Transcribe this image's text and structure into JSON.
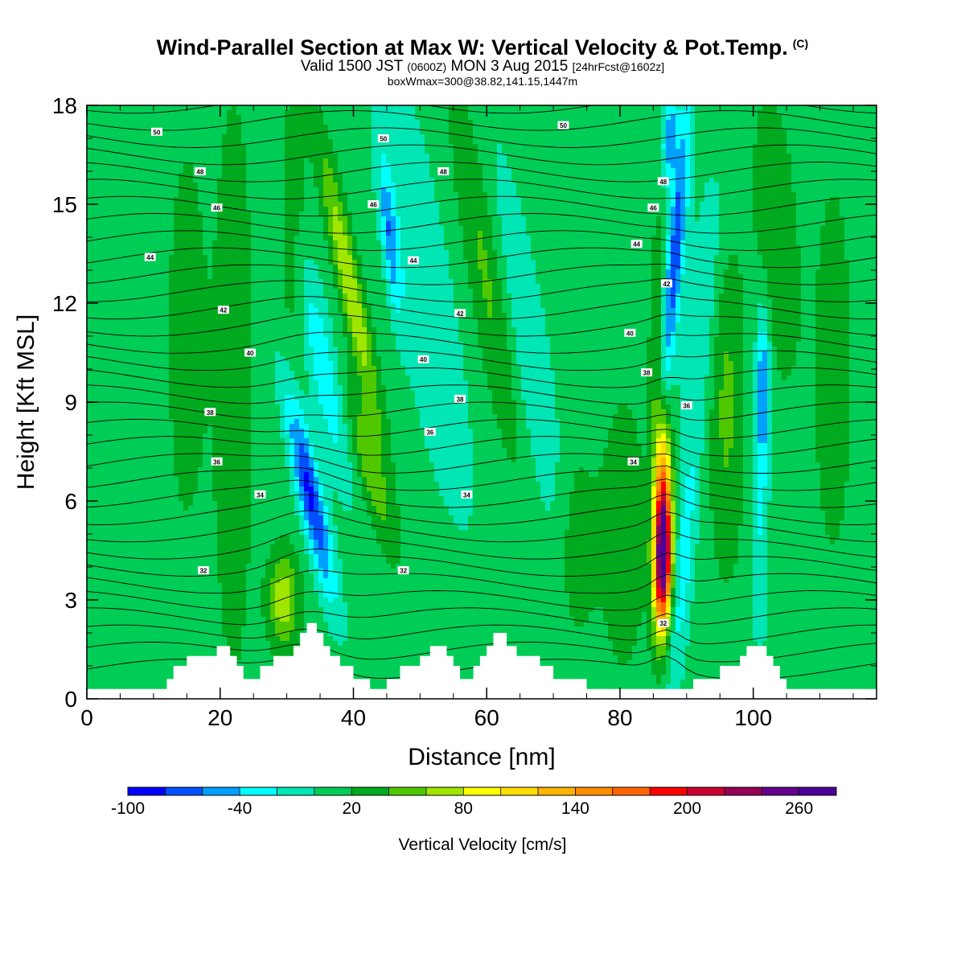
{
  "title": {
    "main": "Wind-Parallel Section at Max W: Vertical Velocity & Pot.Temp.",
    "mark": "(C)",
    "line2_a": "Valid 1500 JST",
    "line2_b": "(0600Z)",
    "line2_c": "MON 3 Aug 2015",
    "line2_d": "[24hrFcst@1602z]",
    "line3": "boxWmax=300@38.82,141.15,1447m"
  },
  "chart_data": {
    "type": "heatmap",
    "xlabel": "Distance [nm]",
    "ylabel": "Height [Kft MSL]",
    "xlim": [
      0,
      118.5
    ],
    "ylim": [
      0,
      18
    ],
    "xticks": [
      0,
      20,
      40,
      60,
      80,
      100
    ],
    "yticks": [
      0,
      3,
      6,
      9,
      12,
      15,
      18
    ],
    "background_value": 10,
    "colorbar": {
      "label": "Vertical Velocity [cm/s]",
      "levels": [
        -100,
        -80,
        -60,
        -40,
        -20,
        0,
        20,
        40,
        60,
        80,
        100,
        120,
        140,
        160,
        180,
        200,
        220,
        240,
        260,
        280
      ],
      "tick_labels": [
        -100,
        -40,
        20,
        80,
        140,
        200,
        260
      ],
      "colors": [
        "#0000ff",
        "#0050ff",
        "#00a0ff",
        "#00ffff",
        "#00e6b4",
        "#00cd55",
        "#00aa1e",
        "#50c800",
        "#a0e600",
        "#ffff00",
        "#ffdc00",
        "#ffb400",
        "#ff8c00",
        "#ff6400",
        "#ff0000",
        "#cd0032",
        "#960055",
        "#64008c",
        "#4b0096"
      ]
    },
    "features": [
      {
        "x": 33.5,
        "y": 6.2,
        "sx": 1.3,
        "sy": 2.2,
        "w": -95,
        "tilt": -1.0
      },
      {
        "x": 35.5,
        "y": 10.0,
        "sx": 1.6,
        "sy": 2.5,
        "w": -45,
        "tilt": -0.9
      },
      {
        "x": 39.5,
        "y": 12.5,
        "sx": 1.2,
        "sy": 3.0,
        "w": 70,
        "tilt": -1.0
      },
      {
        "x": 42.5,
        "y": 7.0,
        "sx": 1.4,
        "sy": 1.7,
        "w": 45,
        "tilt": -1.2
      },
      {
        "x": 45.5,
        "y": 14.0,
        "sx": 0.8,
        "sy": 1.6,
        "w": -60,
        "tilt": -0.5
      },
      {
        "x": 29.5,
        "y": 3.0,
        "sx": 1.6,
        "sy": 1.0,
        "w": 65,
        "tilt": 0
      },
      {
        "x": 50.5,
        "y": 12.5,
        "sx": 3.0,
        "sy": 5.0,
        "w": -30,
        "tilt": -0.8
      },
      {
        "x": 60.5,
        "y": 12.5,
        "sx": 2.0,
        "sy": 4.0,
        "w": 45,
        "tilt": -0.8
      },
      {
        "x": 65.0,
        "y": 11.0,
        "sx": 2.8,
        "sy": 4.5,
        "w": -30,
        "tilt": -0.8
      },
      {
        "x": 86.5,
        "y": 4.2,
        "sx": 0.9,
        "sy": 1.5,
        "w": 245,
        "tilt": 0.1
      },
      {
        "x": 86.2,
        "y": 6.5,
        "sx": 0.9,
        "sy": 1.8,
        "w": 110,
        "tilt": 0.1
      },
      {
        "x": 85.5,
        "y": 11.0,
        "sx": 0.7,
        "sy": 2.5,
        "w": 35,
        "tilt": 0.1
      },
      {
        "x": 88.3,
        "y": 13.5,
        "sx": 0.9,
        "sy": 3.2,
        "w": -85,
        "tilt": 0.4
      },
      {
        "x": 87.5,
        "y": 17.0,
        "sx": 0.8,
        "sy": 1.0,
        "w": -65,
        "tilt": 0.2
      },
      {
        "x": 89.5,
        "y": 4.0,
        "sx": 1.1,
        "sy": 3.0,
        "w": -40,
        "tilt": 0.4
      },
      {
        "x": 92.5,
        "y": 12.0,
        "sx": 1.8,
        "sy": 3.0,
        "w": -30,
        "tilt": 0.5
      },
      {
        "x": 101.5,
        "y": 9.5,
        "sx": 0.7,
        "sy": 1.6,
        "w": -65,
        "tilt": 0
      },
      {
        "x": 101.0,
        "y": 5.5,
        "sx": 0.9,
        "sy": 3.0,
        "w": -30,
        "tilt": 0
      },
      {
        "x": 96.0,
        "y": 9.0,
        "sx": 1.8,
        "sy": 3.5,
        "w": 35,
        "tilt": 0
      },
      {
        "x": 103.5,
        "y": 14.0,
        "sx": 2.2,
        "sy": 3.0,
        "w": 28,
        "tilt": -0.3
      },
      {
        "x": 22.0,
        "y": 9.5,
        "sx": 2.0,
        "sy": 6.0,
        "w": 28,
        "tilt": 0
      },
      {
        "x": 15.0,
        "y": 11.0,
        "sx": 2.0,
        "sy": 4.0,
        "w": 24,
        "tilt": 0
      },
      {
        "x": 31.0,
        "y": 14.5,
        "sx": 1.4,
        "sy": 3.0,
        "w": 24,
        "tilt": 0
      },
      {
        "x": 73.5,
        "y": 4.5,
        "sx": 2.0,
        "sy": 2.0,
        "w": 26,
        "tilt": 0
      },
      {
        "x": 80.5,
        "y": 5.0,
        "sx": 2.5,
        "sy": 3.0,
        "w": 24,
        "tilt": 0
      },
      {
        "x": 112.0,
        "y": 10.0,
        "sx": 2.0,
        "sy": 4.0,
        "w": 24,
        "tilt": 0
      }
    ],
    "terrain": [
      [
        0,
        0.3
      ],
      [
        12,
        0.3
      ],
      [
        12,
        0.6
      ],
      [
        13,
        0.6
      ],
      [
        13,
        1.0
      ],
      [
        15,
        1.0
      ],
      [
        15,
        1.3
      ],
      [
        19.5,
        1.3
      ],
      [
        19.5,
        1.6
      ],
      [
        21.5,
        1.6
      ],
      [
        21.5,
        1.3
      ],
      [
        22.5,
        1.3
      ],
      [
        22.5,
        1.0
      ],
      [
        23.5,
        1.0
      ],
      [
        23.5,
        0.6
      ],
      [
        26,
        0.6
      ],
      [
        26,
        1.0
      ],
      [
        28,
        1.0
      ],
      [
        28,
        1.3
      ],
      [
        31,
        1.3
      ],
      [
        31,
        1.6
      ],
      [
        32,
        1.6
      ],
      [
        32,
        2.0
      ],
      [
        33,
        2.0
      ],
      [
        33,
        2.3
      ],
      [
        34.5,
        2.3
      ],
      [
        34.5,
        2.0
      ],
      [
        35.5,
        2.0
      ],
      [
        35.5,
        1.6
      ],
      [
        36.5,
        1.6
      ],
      [
        36.5,
        1.3
      ],
      [
        38,
        1.3
      ],
      [
        38,
        1.0
      ],
      [
        40,
        1.0
      ],
      [
        40,
        0.6
      ],
      [
        42.5,
        0.6
      ],
      [
        42.5,
        0.3
      ],
      [
        45,
        0.3
      ],
      [
        45,
        0.6
      ],
      [
        47,
        0.6
      ],
      [
        47,
        1.0
      ],
      [
        50,
        1.0
      ],
      [
        50,
        1.3
      ],
      [
        51.5,
        1.3
      ],
      [
        51.5,
        1.6
      ],
      [
        54,
        1.6
      ],
      [
        54,
        1.3
      ],
      [
        55,
        1.3
      ],
      [
        55,
        1.0
      ],
      [
        56,
        1.0
      ],
      [
        56,
        0.6
      ],
      [
        58,
        0.6
      ],
      [
        58,
        1.0
      ],
      [
        59,
        1.0
      ],
      [
        59,
        1.3
      ],
      [
        60,
        1.3
      ],
      [
        60,
        1.6
      ],
      [
        61,
        1.6
      ],
      [
        61,
        2.0
      ],
      [
        63,
        2.0
      ],
      [
        63,
        1.6
      ],
      [
        64.5,
        1.6
      ],
      [
        64.5,
        1.3
      ],
      [
        68,
        1.3
      ],
      [
        68,
        1.0
      ],
      [
        70,
        1.0
      ],
      [
        70,
        0.6
      ],
      [
        75,
        0.6
      ],
      [
        75,
        0.3
      ],
      [
        91,
        0.3
      ],
      [
        91,
        0.6
      ],
      [
        95,
        0.6
      ],
      [
        95,
        1.0
      ],
      [
        98,
        1.0
      ],
      [
        98,
        1.3
      ],
      [
        99,
        1.3
      ],
      [
        99,
        1.6
      ],
      [
        102,
        1.6
      ],
      [
        102,
        1.3
      ],
      [
        103,
        1.3
      ],
      [
        103,
        1.0
      ],
      [
        104,
        1.0
      ],
      [
        104,
        0.6
      ],
      [
        105,
        0.6
      ],
      [
        105,
        0.3
      ],
      [
        118.5,
        0.3
      ]
    ],
    "contour_labels": [
      {
        "text": "50",
        "x": 10.5,
        "y": 17.2
      },
      {
        "text": "50",
        "x": 44.5,
        "y": 17.0
      },
      {
        "text": "50",
        "x": 71.5,
        "y": 17.4
      },
      {
        "text": "48",
        "x": 17.0,
        "y": 16.0
      },
      {
        "text": "48",
        "x": 53.5,
        "y": 16.0
      },
      {
        "text": "48",
        "x": 86.5,
        "y": 15.7
      },
      {
        "text": "46",
        "x": 19.5,
        "y": 14.9
      },
      {
        "text": "46",
        "x": 43.0,
        "y": 15.0
      },
      {
        "text": "46",
        "x": 85.0,
        "y": 14.9
      },
      {
        "text": "44",
        "x": 9.5,
        "y": 13.4
      },
      {
        "text": "44",
        "x": 49.0,
        "y": 13.3
      },
      {
        "text": "44",
        "x": 82.5,
        "y": 13.8
      },
      {
        "text": "42",
        "x": 20.5,
        "y": 11.8
      },
      {
        "text": "42",
        "x": 56.0,
        "y": 11.7
      },
      {
        "text": "42",
        "x": 87.0,
        "y": 12.6
      },
      {
        "text": "40",
        "x": 24.5,
        "y": 10.5
      },
      {
        "text": "40",
        "x": 50.5,
        "y": 10.3
      },
      {
        "text": "40",
        "x": 81.5,
        "y": 11.1
      },
      {
        "text": "38",
        "x": 18.5,
        "y": 8.7
      },
      {
        "text": "38",
        "x": 56.0,
        "y": 9.1
      },
      {
        "text": "38",
        "x": 84.0,
        "y": 9.9
      },
      {
        "text": "36",
        "x": 19.5,
        "y": 7.2
      },
      {
        "text": "36",
        "x": 51.5,
        "y": 8.1
      },
      {
        "text": "36",
        "x": 90.0,
        "y": 8.9
      },
      {
        "text": "34",
        "x": 26.0,
        "y": 6.2
      },
      {
        "text": "34",
        "x": 57.0,
        "y": 6.2
      },
      {
        "text": "34",
        "x": 82.0,
        "y": 7.2
      },
      {
        "text": "32",
        "x": 17.5,
        "y": 3.9
      },
      {
        "text": "32",
        "x": 47.5,
        "y": 3.9
      },
      {
        "text": "32",
        "x": 86.5,
        "y": 2.3
      }
    ]
  }
}
